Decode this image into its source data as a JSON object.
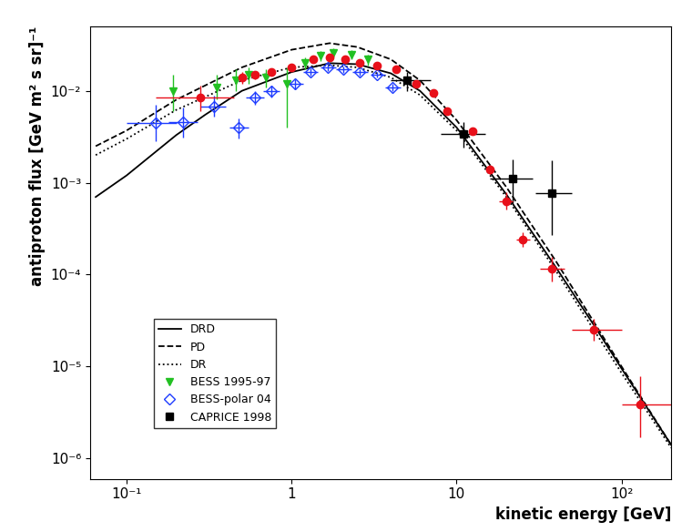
{
  "chart_data": {
    "type": "scatter",
    "xlabel": "kinetic energy [GeV]",
    "ylabel": "antiproton flux [GeV m² s sr]⁻¹",
    "log": true,
    "grid": false,
    "legend": "lower left",
    "xlim": [
      0.06,
      200
    ],
    "ylim": [
      6e-07,
      0.05
    ],
    "xticks": [
      {
        "value": 0.1,
        "label": "10⁻¹"
      },
      1,
      10,
      {
        "value": 100,
        "label": "10²"
      }
    ],
    "yticks": [
      {
        "value": 1e-06,
        "label": "10⁻⁶"
      },
      {
        "value": 1e-05,
        "label": "10⁻⁵"
      },
      {
        "value": 0.0001,
        "label": "10⁻⁴"
      },
      {
        "value": 0.001,
        "label": "10⁻³"
      },
      {
        "value": 0.01,
        "label": "10⁻²"
      }
    ],
    "series": [
      {
        "name": "DRD",
        "type": "line",
        "color": "#000000",
        "line_style": "solid",
        "x": [
          0.065,
          0.1,
          0.2,
          0.3,
          0.5,
          1,
          1.7,
          2.5,
          4,
          6,
          10,
          20,
          40,
          70,
          100,
          200
        ],
        "values": [
          0.0007,
          0.0012,
          0.0033,
          0.0055,
          0.01,
          0.016,
          0.02,
          0.0195,
          0.0155,
          0.01,
          0.004,
          0.00075,
          0.00012,
          2.6e-05,
          9.5e-06,
          1.4e-06
        ]
      },
      {
        "name": "PD",
        "type": "line",
        "color": "#000000",
        "line_style": "dashed",
        "x": [
          0.065,
          0.1,
          0.2,
          0.5,
          1,
          1.7,
          2.5,
          4,
          6,
          10,
          20,
          40,
          70,
          100,
          200
        ],
        "values": [
          0.0025,
          0.0037,
          0.008,
          0.018,
          0.028,
          0.033,
          0.03,
          0.022,
          0.013,
          0.0048,
          0.0009,
          0.00014,
          2.8e-05,
          1e-05,
          1.4e-06
        ]
      },
      {
        "name": "DR",
        "type": "line",
        "color": "#000000",
        "line_style": "dotted",
        "x": [
          0.065,
          0.1,
          0.2,
          0.5,
          1,
          1.7,
          2.5,
          4,
          6,
          10,
          20,
          40,
          70,
          100,
          200
        ],
        "values": [
          0.002,
          0.003,
          0.0062,
          0.013,
          0.018,
          0.019,
          0.018,
          0.014,
          0.009,
          0.0037,
          0.0007,
          0.00011,
          2.3e-05,
          8.5e-06,
          1.3e-06
        ]
      },
      {
        "name": "BESS 1995-97",
        "type": "scatter",
        "color": "#22c022",
        "marker": "triangle_down",
        "x": [
          0.19,
          0.35,
          0.46,
          0.55,
          0.7,
          0.93,
          1.2,
          1.5,
          1.8,
          2.3,
          2.9
        ],
        "values": [
          0.01,
          0.011,
          0.013,
          0.015,
          0.014,
          0.012,
          0.02,
          0.024,
          0.026,
          0.025,
          0.022
        ],
        "yerr": [
          [
            0.004,
            0.005
          ],
          [
            0.003,
            0.004
          ],
          [
            0.003,
            0.004
          ],
          [
            0.003,
            0.003
          ],
          [
            0.003,
            0.003
          ],
          [
            0.008,
            0.006
          ],
          [
            0.003,
            0.003
          ],
          [
            0.003,
            0.003
          ],
          [
            0.003,
            0.003
          ],
          [
            0.003,
            0.003
          ],
          [
            0.003,
            0.003
          ]
        ]
      },
      {
        "name": "BESS-polar 04",
        "type": "scatter",
        "color": "#1e3cff",
        "marker": "open_diamond",
        "x": [
          0.15,
          0.22,
          0.34,
          0.48,
          0.6,
          0.75,
          1.05,
          1.3,
          1.65,
          2.05,
          2.6,
          3.3,
          4.1
        ],
        "values": [
          0.0045,
          0.0046,
          0.0068,
          0.004,
          0.0085,
          0.01,
          0.012,
          0.016,
          0.018,
          0.017,
          0.016,
          0.015,
          0.011
        ],
        "xerr": [
          [
            0.05,
            0.05
          ],
          [
            0.04,
            0.05
          ],
          [
            0.06,
            0.06
          ],
          [
            0.06,
            0.07
          ],
          [
            0.07,
            0.08
          ],
          [
            0.08,
            0.1
          ],
          [
            0.1,
            0.12
          ],
          [
            0.13,
            0.15
          ],
          [
            0.15,
            0.2
          ],
          [
            0.2,
            0.25
          ],
          [
            0.25,
            0.3
          ],
          [
            0.3,
            0.4
          ],
          [
            0.4,
            0.5
          ]
        ],
        "yerr": [
          [
            0.0017,
            0.0025
          ],
          [
            0.0015,
            0.002
          ],
          [
            0.0015,
            0.002
          ],
          [
            0.001,
            0.001
          ],
          [
            0.0015,
            0.0015
          ],
          [
            0.0015,
            0.0015
          ],
          [
            0.0015,
            0.0015
          ],
          [
            0.0015,
            0.0015
          ],
          [
            0.0015,
            0.0015
          ],
          [
            0.0012,
            0.0012
          ],
          [
            0.0012,
            0.0012
          ],
          [
            0.001,
            0.001
          ],
          [
            0.001,
            0.001
          ]
        ]
      },
      {
        "name": "CAPRICE 1998",
        "type": "scatter",
        "color": "#000000",
        "marker": "square",
        "x": [
          5.0,
          11,
          22,
          38
        ],
        "values": [
          0.013,
          0.0034,
          0.0011,
          0.00077
        ],
        "xerr": [
          [
            1,
            2
          ],
          [
            3,
            4
          ],
          [
            6,
            7
          ],
          [
            8,
            12
          ]
        ],
        "yerr": [
          [
            0.003,
            0.003
          ],
          [
            0.001,
            0.0012
          ],
          [
            0.0005,
            0.0007
          ],
          [
            0.0005,
            0.001
          ]
        ]
      },
      {
        "type": "scatter",
        "color": "#e8101a",
        "marker": "circle",
        "x": [
          0.28,
          0.5,
          0.6,
          0.75,
          1.0,
          1.35,
          1.7,
          2.1,
          2.6,
          3.3,
          4.3,
          5.7,
          7.2,
          8.8,
          12.5,
          16,
          20,
          25,
          38,
          68,
          130
        ],
        "values": [
          0.0085,
          0.014,
          0.015,
          0.016,
          0.018,
          0.022,
          0.023,
          0.022,
          0.02,
          0.019,
          0.017,
          0.012,
          0.0095,
          0.006,
          0.0036,
          0.0014,
          0.00063,
          0.00024,
          0.000115,
          2.5e-05,
          3.9e-06
        ],
        "xerr": [
          [
            0.13,
            0.17
          ],
          [
            0,
            0
          ],
          [
            0,
            0
          ],
          [
            0,
            0
          ],
          [
            0,
            0
          ],
          [
            0,
            0
          ],
          [
            0,
            0
          ],
          [
            0,
            0
          ],
          [
            0,
            0
          ],
          [
            0,
            0
          ],
          [
            0,
            0
          ],
          [
            0,
            0
          ],
          [
            0,
            0
          ],
          [
            0,
            0
          ],
          [
            0,
            0
          ],
          [
            0,
            0
          ],
          [
            2,
            2
          ],
          [
            2,
            3
          ],
          [
            6,
            7
          ],
          [
            18,
            32
          ],
          [
            30,
            70
          ]
        ],
        "yerr": [
          [
            0.0025,
            0.003
          ],
          [
            0.002,
            0.002
          ],
          [
            0.0015,
            0.0015
          ],
          [
            0.0015,
            0.0015
          ],
          [
            0.0015,
            0.0015
          ],
          [
            0.0015,
            0.0015
          ],
          [
            0.0015,
            0.0015
          ],
          [
            0.0015,
            0.0015
          ],
          [
            0.0012,
            0.0012
          ],
          [
            0.0012,
            0.0012
          ],
          [
            0.001,
            0.001
          ],
          [
            0.0008,
            0.0008
          ],
          [
            0.0006,
            0.0006
          ],
          [
            0.0004,
            0.0004
          ],
          [
            0.0003,
            0.0003
          ],
          [
            0.00015,
            0.00015
          ],
          [
            0.00012,
            0.00015
          ],
          [
            4e-05,
            5e-05
          ],
          [
            3e-05,
            4e-05
          ],
          [
            6e-06,
            8e-06
          ],
          [
            2.2e-06,
            4e-06
          ]
        ]
      }
    ]
  }
}
